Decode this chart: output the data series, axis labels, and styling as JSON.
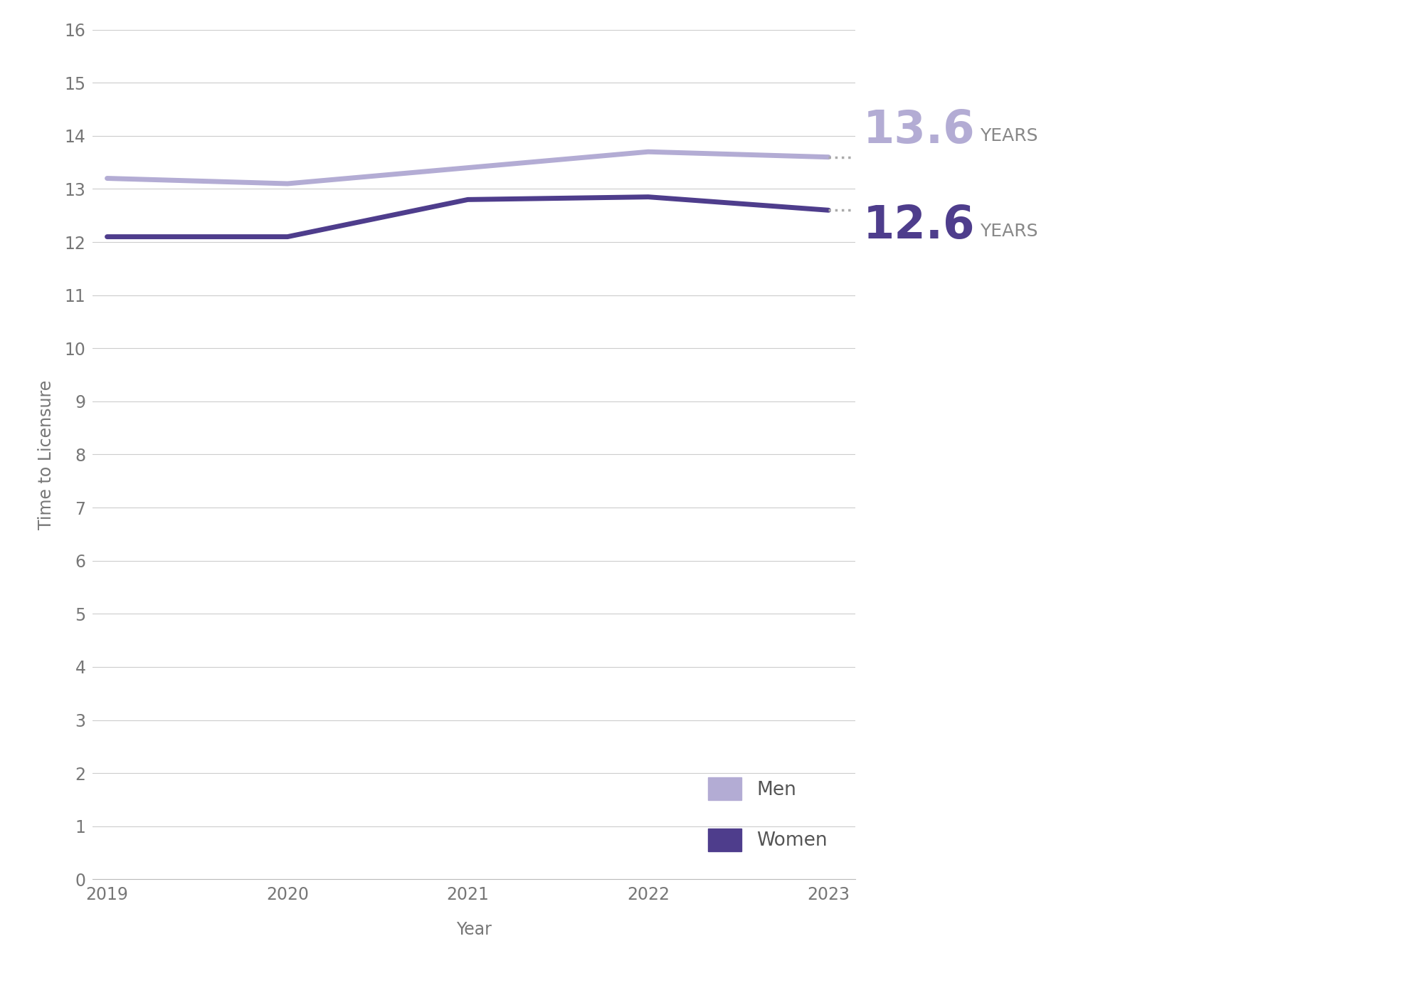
{
  "years": [
    2019,
    2020,
    2021,
    2022,
    2023
  ],
  "men_values": [
    13.2,
    13.1,
    13.4,
    13.7,
    13.6
  ],
  "women_values": [
    12.1,
    12.1,
    12.8,
    12.85,
    12.6
  ],
  "men_color": "#b3acd4",
  "women_color": "#4e3d8c",
  "men_label": "Men",
  "women_label": "Women",
  "men_final_number": "13.6",
  "women_final_number": "12.6",
  "final_unit": "YEARS",
  "ylabel": "Time to Licensure",
  "xlabel": "Year",
  "ylim_min": 0,
  "ylim_max": 16,
  "yticks": [
    0,
    1,
    2,
    3,
    4,
    5,
    6,
    7,
    8,
    9,
    10,
    11,
    12,
    13,
    14,
    15,
    16
  ],
  "grid_color": "#cccccc",
  "background_color": "#ffffff",
  "line_width": 5,
  "dot_color": "#aaaaaa",
  "men_text_color": "#b3acd4",
  "women_text_color": "#4e3d8c",
  "unit_color": "#888888",
  "number_fontsize": 46,
  "unit_fontsize": 18,
  "legend_fontsize": 19,
  "axis_label_fontsize": 17,
  "tick_fontsize": 17
}
